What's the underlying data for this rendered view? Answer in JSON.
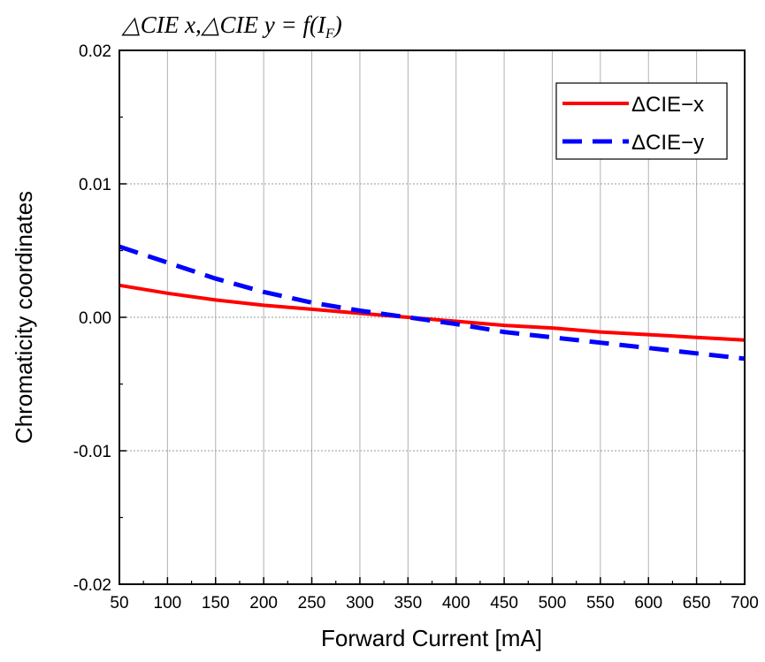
{
  "chart_data": {
    "type": "line",
    "title": "△CIE x,△CIE y = f(I",
    "title_subscript": "F",
    "title_close": ")",
    "xlabel": "Forward Current [mA]",
    "ylabel": "Chromaticity coordinates",
    "xlim": [
      50,
      700
    ],
    "ylim": [
      -0.02,
      0.02
    ],
    "x_ticks": [
      50,
      100,
      150,
      200,
      250,
      300,
      350,
      400,
      450,
      500,
      550,
      600,
      650,
      700
    ],
    "x_tick_labels": [
      "50",
      "100",
      "150",
      "200",
      "250",
      "300",
      "350",
      "400",
      "450",
      "500",
      "550",
      "600",
      "650",
      "700"
    ],
    "y_ticks": [
      -0.02,
      -0.01,
      0.0,
      0.01,
      0.02
    ],
    "y_tick_labels": [
      "-0.02",
      "-0.01",
      "0.00",
      "0.01",
      "0.02"
    ],
    "grid": "vertical at x ticks (solid), horizontal at y ticks (dotted)",
    "legend_position": "top-right",
    "series": [
      {
        "name": "ΔCIE−x",
        "color": "#ff0000",
        "style": "solid",
        "x": [
          50,
          100,
          150,
          200,
          250,
          300,
          350,
          400,
          450,
          500,
          550,
          600,
          650,
          700
        ],
        "y": [
          0.0024,
          0.0018,
          0.0013,
          0.0009,
          0.0006,
          0.0003,
          0.0,
          -0.0003,
          -0.0006,
          -0.0008,
          -0.0011,
          -0.0013,
          -0.0015,
          -0.0017
        ]
      },
      {
        "name": "ΔCIE−y",
        "color": "#0000ff",
        "style": "dashed",
        "x": [
          50,
          100,
          150,
          200,
          250,
          300,
          350,
          400,
          450,
          500,
          550,
          600,
          650,
          700
        ],
        "y": [
          0.0053,
          0.0041,
          0.0029,
          0.0019,
          0.0011,
          0.0005,
          0.0,
          -0.0005,
          -0.0011,
          -0.0015,
          -0.0019,
          -0.0023,
          -0.0027,
          -0.0031
        ]
      }
    ]
  }
}
